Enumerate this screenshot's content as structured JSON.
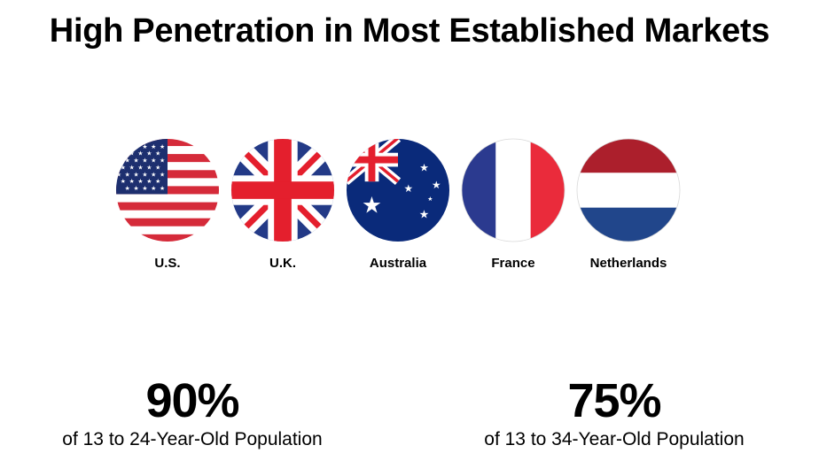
{
  "title": "High Penetration in Most Established Markets",
  "flags": [
    {
      "label": "U.S.",
      "icon": "us-flag-icon"
    },
    {
      "label": "U.K.",
      "icon": "uk-flag-icon"
    },
    {
      "label": "Australia",
      "icon": "australia-flag-icon"
    },
    {
      "label": "France",
      "icon": "france-flag-icon"
    },
    {
      "label": "Netherlands",
      "icon": "netherlands-flag-icon"
    }
  ],
  "stats": [
    {
      "value": "90%",
      "caption": "of 13 to 24-Year-Old Population"
    },
    {
      "value": "75%",
      "caption": "of 13 to 34-Year-Old Population"
    }
  ],
  "colors": {
    "red": "#d52b3a",
    "blue": "#1d2f6f",
    "white": "#ffffff",
    "uk_red": "#e41f2d",
    "uk_blue": "#233a87",
    "au_blue": "#0a2a7a",
    "fr_blue": "#2b3a8f",
    "fr_red": "#ea2b3b",
    "nl_red": "#ac1f2c",
    "nl_blue": "#21468b"
  }
}
